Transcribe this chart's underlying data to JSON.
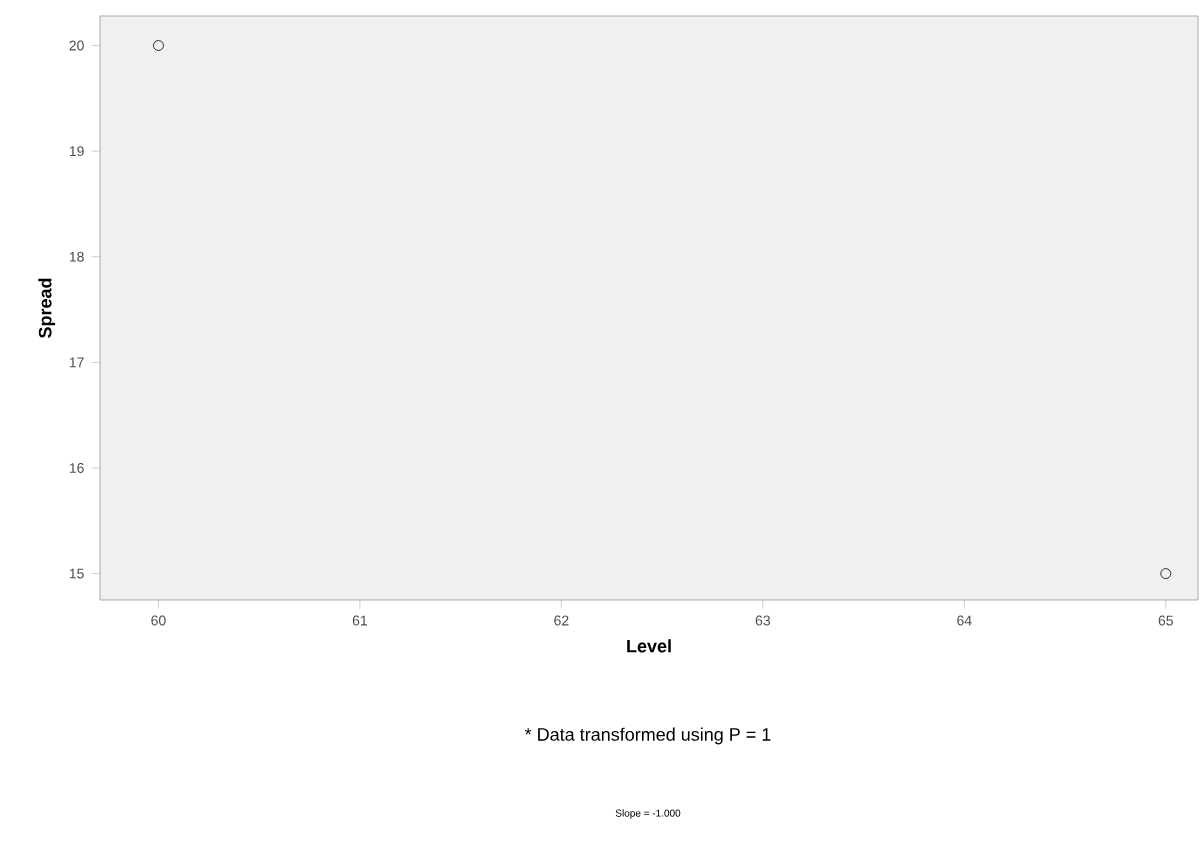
{
  "chart_data": {
    "type": "scatter",
    "xlabel": "Level",
    "ylabel": "Spread",
    "x": [
      60,
      65
    ],
    "values": [
      20,
      15
    ],
    "color": "#000000",
    "marker": "circle",
    "xlim": [
      59.71,
      65.16
    ],
    "ylim": [
      14.75,
      20.28
    ],
    "xticks": [
      60,
      61,
      62,
      63,
      64,
      65
    ],
    "yticks": [
      15,
      16,
      17,
      18,
      19,
      20
    ],
    "grid": false,
    "annotations": [
      "* Data transformed using P = 1",
      "Slope = -1.000"
    ]
  }
}
